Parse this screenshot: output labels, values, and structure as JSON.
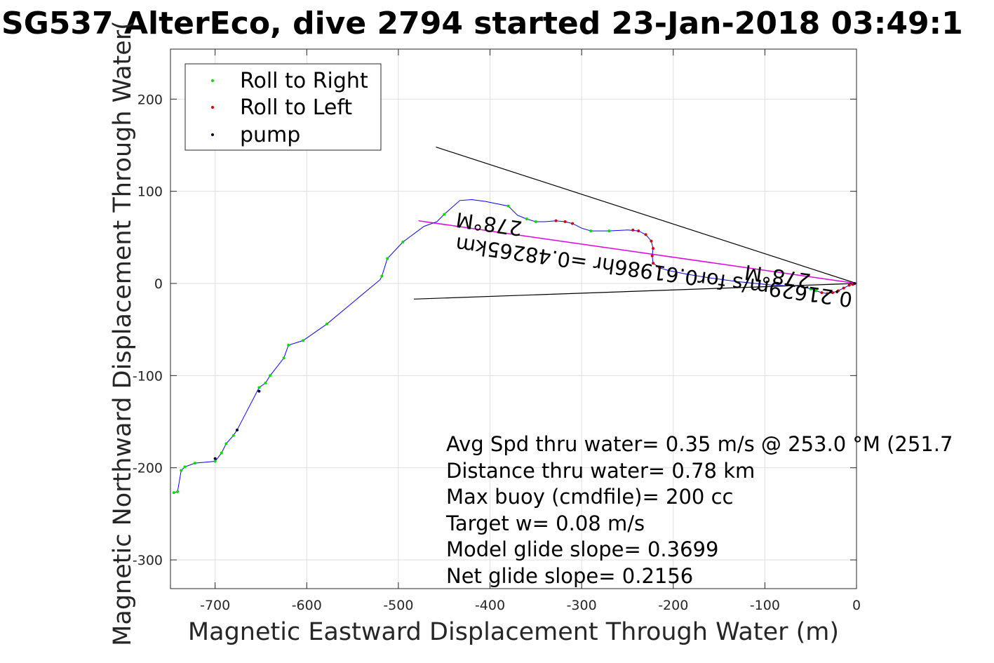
{
  "chart_data": {
    "type": "scatter",
    "title": "SG537 AlterEco, dive 2794 started 23-Jan-2018 03:49:1",
    "xlabel": "Magnetic Eastward Displacement Through Water (m)",
    "ylabel": "Magnetic Northward Displacement Through Water(",
    "xlim": [
      -745,
      0
    ],
    "ylim": [
      -330,
      255
    ],
    "xticks": [
      -700,
      -600,
      -500,
      -400,
      -300,
      -200,
      -100,
      0
    ],
    "yticks": [
      200,
      100,
      0,
      -100,
      -200,
      -300
    ],
    "grid": true,
    "legend_position": "top-left",
    "legend": [
      "Roll to Right",
      "Roll to Left",
      "pump"
    ],
    "colors": {
      "track": "#0000ff",
      "roll_right": "#00e000",
      "roll_left": "#e00000",
      "pump": "#000033",
      "magenta": "#e000e0",
      "heading": "#000000"
    },
    "track": [
      [
        0,
        0
      ],
      [
        -8,
        -2
      ],
      [
        -14,
        -5
      ],
      [
        -20,
        -8
      ],
      [
        -26,
        -10
      ],
      [
        -32,
        -11
      ],
      [
        -38,
        -10
      ],
      [
        -44,
        -8
      ],
      [
        -50,
        -6
      ],
      [
        -60,
        -3
      ],
      [
        -90,
        -2
      ],
      [
        -130,
        2
      ],
      [
        -160,
        6
      ],
      [
        -185,
        10
      ],
      [
        -205,
        14
      ],
      [
        -215,
        17
      ],
      [
        -222,
        22
      ],
      [
        -223,
        30
      ],
      [
        -222,
        38
      ],
      [
        -224,
        46
      ],
      [
        -230,
        53
      ],
      [
        -238,
        57
      ],
      [
        -250,
        58
      ],
      [
        -270,
        57
      ],
      [
        -290,
        57
      ],
      [
        -300,
        60
      ],
      [
        -310,
        65
      ],
      [
        -318,
        67
      ],
      [
        -328,
        68
      ],
      [
        -340,
        67
      ],
      [
        -350,
        67
      ],
      [
        -360,
        70
      ],
      [
        -370,
        74
      ],
      [
        -380,
        84
      ],
      [
        -405,
        89
      ],
      [
        -420,
        91
      ],
      [
        -433,
        90
      ],
      [
        -450,
        75
      ],
      [
        -458,
        67
      ],
      [
        -472,
        62
      ],
      [
        -495,
        45
      ],
      [
        -512,
        27
      ],
      [
        -518,
        8
      ],
      [
        -520,
        4
      ],
      [
        -578,
        -44
      ],
      [
        -604,
        -62
      ],
      [
        -620,
        -67
      ],
      [
        -625,
        -81
      ],
      [
        -640,
        -100
      ],
      [
        -645,
        -108
      ],
      [
        -652,
        -113
      ],
      [
        -676,
        -159
      ],
      [
        -680,
        -165
      ],
      [
        -688,
        -174
      ],
      [
        -693,
        -184
      ],
      [
        -700,
        -193
      ],
      [
        -722,
        -195
      ],
      [
        -733,
        -199
      ],
      [
        -737,
        -203
      ],
      [
        -741,
        -226
      ],
      [
        -745,
        -227
      ]
    ],
    "roll_right": [
      [
        -44,
        -8
      ],
      [
        -50,
        -6
      ],
      [
        -270,
        57
      ],
      [
        -290,
        57
      ],
      [
        -350,
        67
      ],
      [
        -360,
        70
      ],
      [
        -380,
        84
      ],
      [
        -450,
        75
      ],
      [
        -495,
        45
      ],
      [
        -512,
        27
      ],
      [
        -518,
        8
      ],
      [
        -578,
        -44
      ],
      [
        -604,
        -62
      ],
      [
        -620,
        -67
      ],
      [
        -625,
        -81
      ],
      [
        -640,
        -100
      ],
      [
        -645,
        -108
      ],
      [
        -652,
        -113
      ],
      [
        -680,
        -165
      ],
      [
        -688,
        -174
      ],
      [
        -693,
        -184
      ],
      [
        -700,
        -193
      ],
      [
        -722,
        -195
      ],
      [
        -733,
        -199
      ],
      [
        -737,
        -203
      ],
      [
        -741,
        -226
      ],
      [
        -745,
        -227
      ]
    ],
    "roll_left": [
      [
        -4,
        -1
      ],
      [
        -8,
        -2
      ],
      [
        -14,
        -5
      ],
      [
        -20,
        -8
      ],
      [
        -26,
        -10
      ],
      [
        -32,
        -11
      ],
      [
        -38,
        -10
      ],
      [
        -215,
        17
      ],
      [
        -222,
        22
      ],
      [
        -223,
        30
      ],
      [
        -222,
        38
      ],
      [
        -224,
        46
      ],
      [
        -230,
        53
      ],
      [
        -238,
        57
      ],
      [
        -244,
        58
      ],
      [
        -310,
        65
      ],
      [
        -318,
        67
      ],
      [
        -328,
        68
      ]
    ],
    "pump": [
      [
        -2,
        0
      ],
      [
        -652,
        -117
      ],
      [
        -676,
        -159
      ],
      [
        -700,
        -190
      ]
    ],
    "heading_lines": [
      {
        "from": [
          0,
          0
        ],
        "to": [
          -459,
          148
        ]
      },
      {
        "from": [
          0,
          0
        ],
        "to": [
          -483,
          -17
        ]
      },
      {
        "from": [
          0,
          0
        ],
        "to": [
          -478,
          68
        ]
      }
    ],
    "rotated_labels": [
      {
        "text": "0.21629m/s for0.61986hr =0.48265km",
        "anchor": [
          -220,
          20
        ]
      },
      {
        "text": "278°M",
        "anchor": [
          -400,
          72
        ]
      },
      {
        "text": "278°M",
        "anchor": [
          -85,
          15
        ]
      }
    ],
    "annotations": [
      "Avg Spd thru water=  0.35 m/s @ 253.0 °M (251.7",
      "Distance thru water=  0.78 km",
      "Max buoy (cmdfile)= 200 cc",
      "Target w= 0.08 m/s",
      "Model glide slope= 0.3699",
      "Net glide slope= 0.2156"
    ]
  }
}
